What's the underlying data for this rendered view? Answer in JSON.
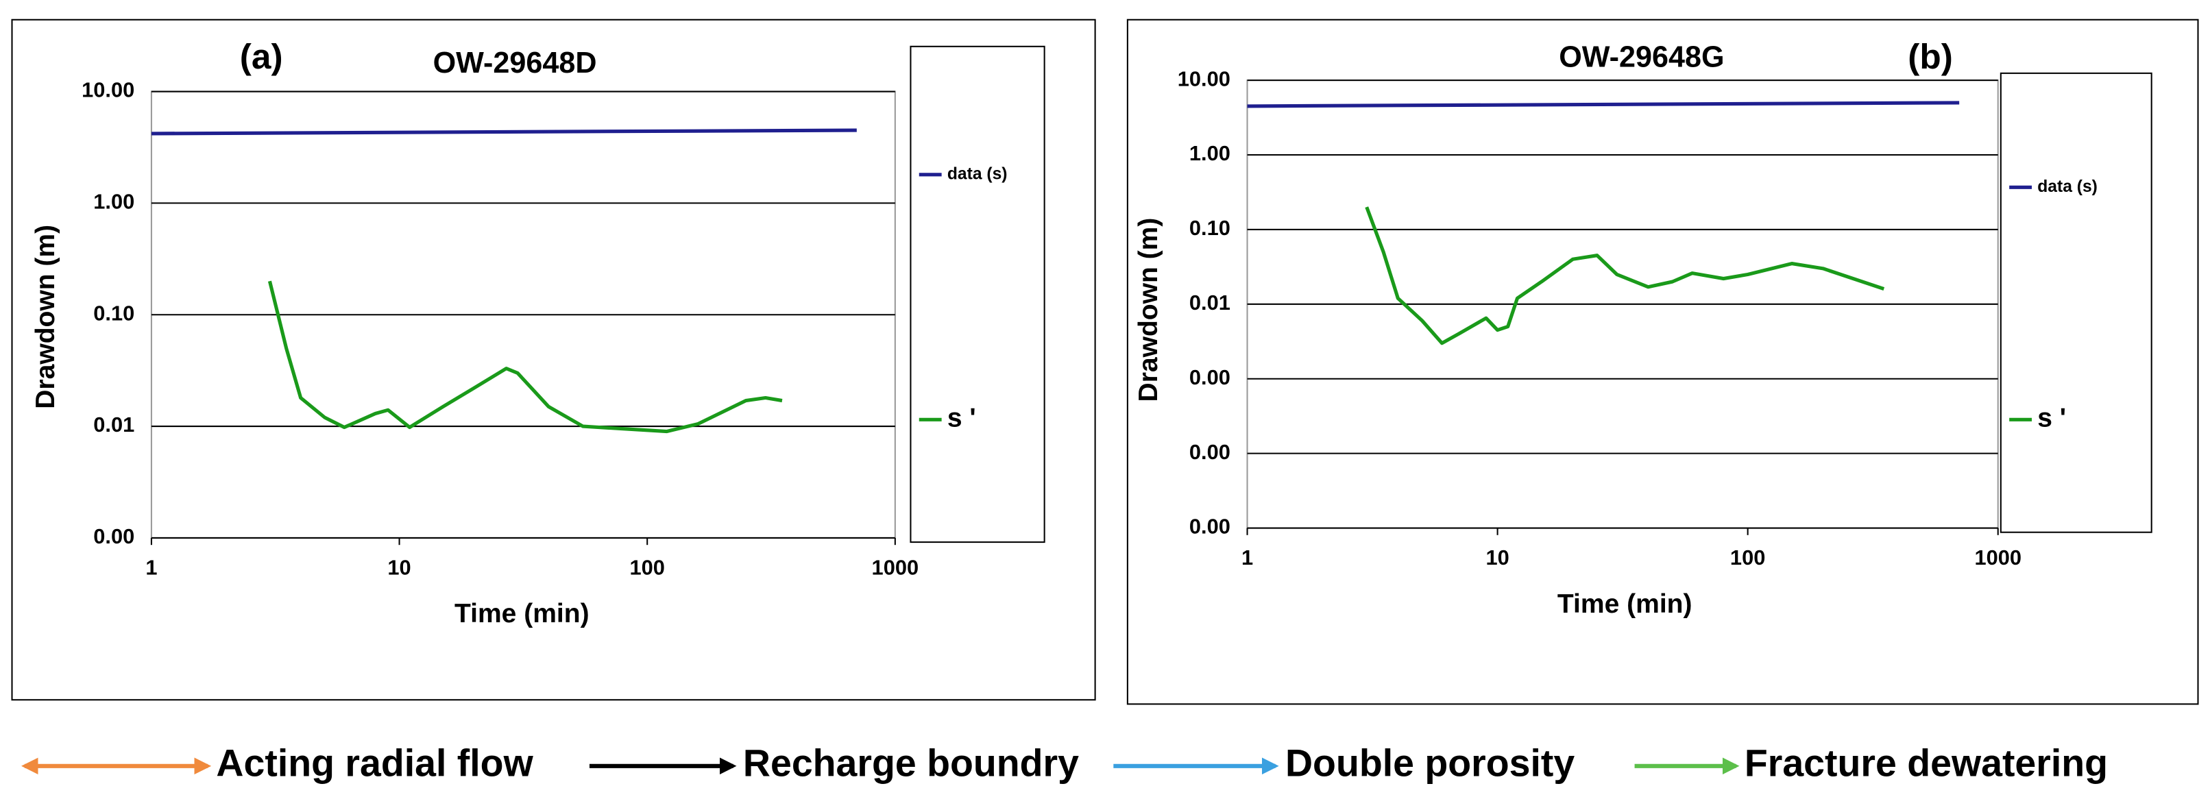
{
  "chart_data": [
    {
      "type": "line",
      "panel": "(a)",
      "title": "OW-29648D",
      "xlabel": "Time (min)",
      "ylabel": "Drawdown (m)",
      "log_x": true,
      "log_y": true,
      "grid": true,
      "xlim": [
        1,
        1000
      ],
      "xticks": [
        1,
        10,
        100,
        1000
      ],
      "ylim": [
        0.001,
        10
      ],
      "yticks": [
        {
          "value": 10,
          "label": "10.00"
        },
        {
          "value": 1,
          "label": "1.00"
        },
        {
          "value": 0.1,
          "label": "0.10"
        },
        {
          "value": 0.01,
          "label": "0.01"
        },
        {
          "value": 0.001,
          "label": "0.00"
        }
      ],
      "series": [
        {
          "name": "data (s)",
          "color": "#1f1f8f",
          "x": [
            1,
            700
          ],
          "values": [
            4.2,
            4.5
          ]
        },
        {
          "name": "s '",
          "color": "#1a9a1a",
          "x": [
            3,
            3.5,
            4,
            5,
            6,
            8,
            9,
            11,
            15,
            20,
            27,
            30,
            40,
            55,
            80,
            120,
            160,
            250,
            300,
            350
          ],
          "values": [
            0.2,
            0.05,
            0.018,
            0.012,
            0.0098,
            0.013,
            0.014,
            0.0098,
            0.015,
            0.022,
            0.033,
            0.03,
            0.015,
            0.01,
            0.0095,
            0.009,
            0.0105,
            0.017,
            0.018,
            0.017
          ]
        }
      ]
    },
    {
      "type": "line",
      "panel": "(b)",
      "title": "OW-29648G",
      "xlabel": "Time (min)",
      "ylabel": "Drawdown (m)",
      "log_x": true,
      "log_y": true,
      "grid": true,
      "xlim": [
        1,
        1000
      ],
      "xticks": [
        1,
        10,
        100,
        1000
      ],
      "ylim": [
        1e-05,
        10
      ],
      "yticks": [
        {
          "value": 10,
          "label": "10.00"
        },
        {
          "value": 1,
          "label": "1.00"
        },
        {
          "value": 0.1,
          "label": "0.10"
        },
        {
          "value": 0.01,
          "label": "0.01"
        },
        {
          "value": 0.001,
          "label": "0.00"
        },
        {
          "value": 0.0001,
          "label": "0.00"
        },
        {
          "value": 1e-05,
          "label": "0.00"
        }
      ],
      "series": [
        {
          "name": "data (s)",
          "color": "#1f1f8f",
          "x": [
            1,
            700
          ],
          "values": [
            4.5,
            5
          ]
        },
        {
          "name": "s '",
          "color": "#1a9a1a",
          "x": [
            3,
            3.5,
            4,
            5,
            6,
            7,
            9,
            10,
            11,
            12,
            15,
            20,
            25,
            30,
            40,
            50,
            60,
            80,
            100,
            150,
            200,
            350
          ],
          "values": [
            0.2,
            0.05,
            0.012,
            0.006,
            0.003,
            0.004,
            0.0065,
            0.0045,
            0.005,
            0.012,
            0.02,
            0.04,
            0.045,
            0.025,
            0.017,
            0.02,
            0.026,
            0.022,
            0.025,
            0.035,
            0.03,
            0.016
          ]
        }
      ]
    }
  ],
  "key": [
    {
      "label": "Acting radial flow",
      "color": "#f08a3c"
    },
    {
      "label": "Recharge boundry",
      "color": "#000000"
    },
    {
      "label": "Double porosity",
      "color": "#3aa0e0"
    },
    {
      "label": "Fracture dewatering",
      "color": "#5cbf4a"
    }
  ]
}
